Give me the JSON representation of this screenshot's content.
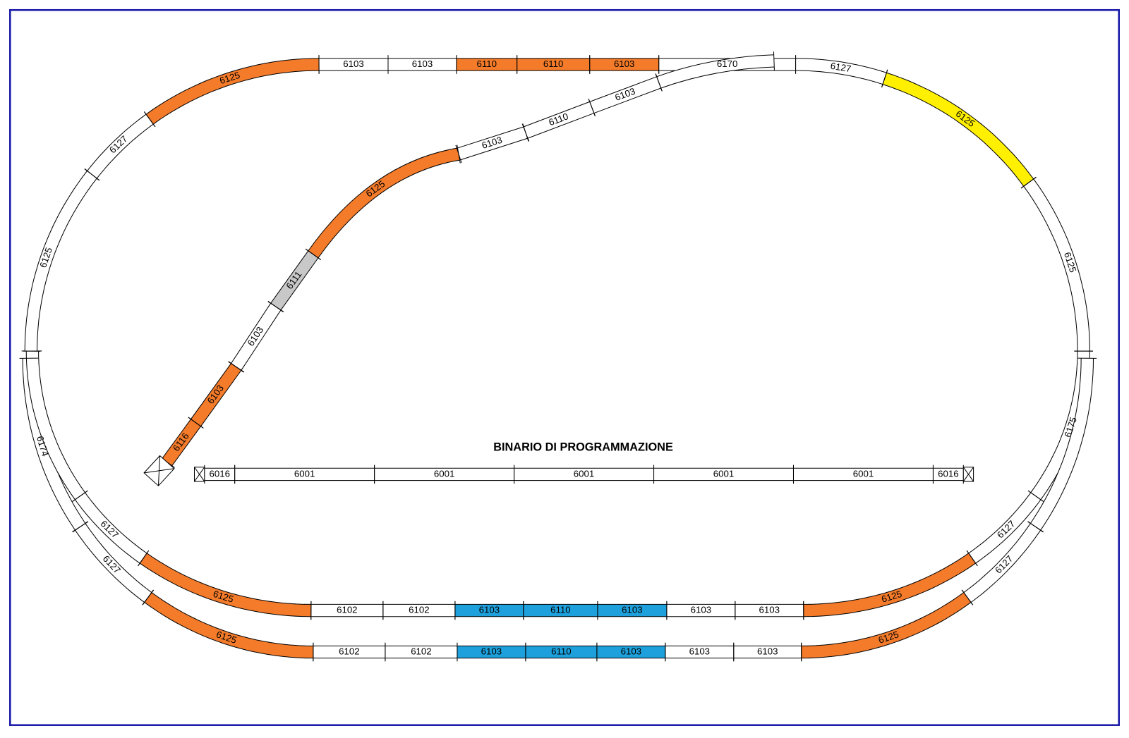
{
  "title": "BINARIO DI PROGRAMMAZIONE",
  "tracks": [
    {
      "label": "6125",
      "color": "#f47b2a"
    },
    {
      "label": "6127",
      "color": "#ffffff"
    },
    {
      "label": "6125",
      "color": "#ffffff"
    },
    {
      "label": "6103",
      "color": "#ffffff"
    },
    {
      "label": "6103",
      "color": "#ffffff"
    },
    {
      "label": "6110",
      "color": "#f47b2a"
    },
    {
      "label": "6110",
      "color": "#f47b2a"
    },
    {
      "label": "6103",
      "color": "#f47b2a"
    },
    {
      "label": "6170",
      "color": "#ffffff"
    },
    {
      "label": "6127",
      "color": "#ffffff"
    },
    {
      "label": "6125",
      "color": "#ffef00"
    },
    {
      "label": "6125",
      "color": "#ffffff"
    },
    {
      "label": "6103",
      "color": "#ffffff"
    },
    {
      "label": "6110",
      "color": "#ffffff"
    },
    {
      "label": "6103",
      "color": "#ffffff"
    },
    {
      "label": "6125",
      "color": "#f47b2a"
    },
    {
      "label": "6111",
      "color": "#c8c8c8"
    },
    {
      "label": "6103",
      "color": "#ffffff"
    },
    {
      "label": "6103",
      "color": "#f47b2a"
    },
    {
      "label": "6116",
      "color": "#f47b2a"
    },
    {
      "label": "6174",
      "color": "#ffffff"
    },
    {
      "label": "6127",
      "color": "#ffffff"
    },
    {
      "label": "6125",
      "color": "#f47b2a"
    },
    {
      "label": "6127",
      "color": "#ffffff"
    },
    {
      "label": "6125",
      "color": "#f47b2a"
    },
    {
      "label": "6102",
      "color": "#ffffff"
    },
    {
      "label": "6102",
      "color": "#ffffff"
    },
    {
      "label": "6103",
      "color": "#1ea0dc"
    },
    {
      "label": "6110",
      "color": "#1ea0dc"
    },
    {
      "label": "6103",
      "color": "#1ea0dc"
    },
    {
      "label": "6103",
      "color": "#ffffff"
    },
    {
      "label": "6103",
      "color": "#ffffff"
    },
    {
      "label": "6102",
      "color": "#ffffff"
    },
    {
      "label": "6102",
      "color": "#ffffff"
    },
    {
      "label": "6103",
      "color": "#1ea0dc"
    },
    {
      "label": "6110",
      "color": "#1ea0dc"
    },
    {
      "label": "6103",
      "color": "#1ea0dc"
    },
    {
      "label": "6103",
      "color": "#ffffff"
    },
    {
      "label": "6103",
      "color": "#ffffff"
    },
    {
      "label": "6175",
      "color": "#ffffff"
    },
    {
      "label": "6127",
      "color": "#ffffff"
    },
    {
      "label": "6125",
      "color": "#f47b2a"
    },
    {
      "label": "6127",
      "color": "#ffffff"
    },
    {
      "label": "6125",
      "color": "#f47b2a"
    },
    {
      "label": "6016",
      "color": "#ffffff"
    },
    {
      "label": "6001",
      "color": "#ffffff"
    },
    {
      "label": "6001",
      "color": "#ffffff"
    },
    {
      "label": "6001",
      "color": "#ffffff"
    },
    {
      "label": "6001",
      "color": "#ffffff"
    },
    {
      "label": "6001",
      "color": "#ffffff"
    },
    {
      "label": "6016",
      "color": "#ffffff"
    }
  ]
}
